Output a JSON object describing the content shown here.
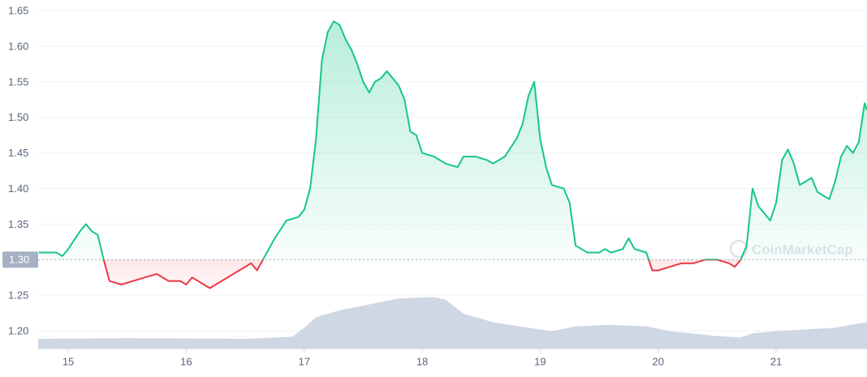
{
  "chart_data": {
    "type": "line",
    "xlim": [
      14.745,
      21.77
    ],
    "xticks": [
      15,
      16,
      17,
      18,
      19,
      20,
      21
    ],
    "ylim": [
      1.175,
      1.665
    ],
    "yticks": [
      {
        "value": 1.2,
        "label": "1.20"
      },
      1.25,
      {
        "value": 1.3,
        "label": "1.30"
      },
      1.35,
      {
        "value": 1.4,
        "label": "1.40"
      },
      1.45,
      {
        "value": 1.5,
        "label": "1.50"
      },
      1.55,
      {
        "value": 1.6,
        "label": "1.60"
      },
      1.65
    ],
    "y2lim": [
      0,
      500
    ],
    "grid": true,
    "baseline": 1.3,
    "watermark": "CoinMarketCap",
    "series": [
      {
        "type": "line",
        "color": "#16c784",
        "color_below": "#ea3943",
        "x": [
          14.75,
          14.9,
          14.95,
          15.0,
          15.1,
          15.15,
          15.2,
          15.25,
          15.3,
          15.35,
          15.45,
          15.55,
          15.65,
          15.75,
          15.85,
          15.95,
          16.0,
          16.05,
          16.15,
          16.2,
          16.3,
          16.4,
          16.5,
          16.55,
          16.6,
          16.65,
          16.75,
          16.85,
          16.95,
          17.0,
          17.05,
          17.1,
          17.15,
          17.2,
          17.25,
          17.3,
          17.35,
          17.4,
          17.45,
          17.5,
          17.55,
          17.6,
          17.65,
          17.7,
          17.75,
          17.8,
          17.85,
          17.9,
          17.95,
          18.0,
          18.1,
          18.2,
          18.3,
          18.35,
          18.45,
          18.55,
          18.6,
          18.7,
          18.8,
          18.85,
          18.9,
          18.95,
          19.0,
          19.05,
          19.1,
          19.2,
          19.25,
          19.3,
          19.4,
          19.5,
          19.55,
          19.6,
          19.7,
          19.75,
          19.8,
          19.9,
          19.95,
          20.0,
          20.1,
          20.2,
          20.3,
          20.4,
          20.5,
          20.6,
          20.65,
          20.7,
          20.75,
          20.8,
          20.85,
          20.95,
          21.0,
          21.05,
          21.1,
          21.15,
          21.2,
          21.3,
          21.35,
          21.45,
          21.5,
          21.55,
          21.6,
          21.65,
          21.7,
          21.75,
          21.77
        ],
        "values": [
          1.31,
          1.31,
          1.305,
          1.315,
          1.34,
          1.35,
          1.34,
          1.335,
          1.3,
          1.27,
          1.265,
          1.27,
          1.275,
          1.28,
          1.27,
          1.27,
          1.265,
          1.275,
          1.265,
          1.26,
          1.27,
          1.28,
          1.29,
          1.295,
          1.285,
          1.3,
          1.33,
          1.355,
          1.36,
          1.37,
          1.4,
          1.47,
          1.58,
          1.62,
          1.635,
          1.63,
          1.61,
          1.595,
          1.575,
          1.55,
          1.535,
          1.55,
          1.555,
          1.565,
          1.555,
          1.545,
          1.525,
          1.48,
          1.475,
          1.45,
          1.445,
          1.435,
          1.43,
          1.445,
          1.445,
          1.44,
          1.435,
          1.445,
          1.47,
          1.49,
          1.53,
          1.55,
          1.47,
          1.43,
          1.405,
          1.4,
          1.38,
          1.32,
          1.31,
          1.31,
          1.315,
          1.31,
          1.315,
          1.33,
          1.315,
          1.31,
          1.285,
          1.285,
          1.29,
          1.295,
          1.295,
          1.3,
          1.3,
          1.295,
          1.29,
          1.3,
          1.32,
          1.4,
          1.375,
          1.355,
          1.38,
          1.44,
          1.455,
          1.435,
          1.405,
          1.415,
          1.395,
          1.385,
          1.41,
          1.445,
          1.46,
          1.45,
          1.465,
          1.52,
          1.51
        ]
      },
      {
        "type": "area",
        "axis": "y2",
        "color": "#cfd6e4",
        "x": [
          14.745,
          15.5,
          16.5,
          16.9,
          17.0,
          17.1,
          17.3,
          17.6,
          17.8,
          18.1,
          18.2,
          18.35,
          18.6,
          18.9,
          19.1,
          19.3,
          19.6,
          19.9,
          20.1,
          20.5,
          20.7,
          20.8,
          21.0,
          21.5,
          21.7,
          21.77
        ],
        "values": [
          14,
          15,
          14,
          17,
          30,
          45,
          55,
          65,
          72,
          74,
          70,
          50,
          38,
          30,
          25,
          32,
          34,
          32,
          25,
          18,
          16,
          22,
          25,
          30,
          36,
          38
        ]
      }
    ]
  }
}
